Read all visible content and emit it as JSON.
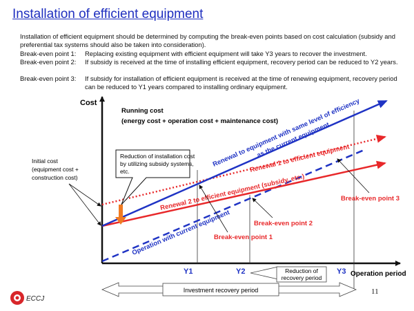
{
  "title": "Installation of efficient equipment",
  "intro": "Installation of efficient equipment should be determined by computing the break-even points based on cost calculation (subsidy and preferential tax systems should also be taken into consideration).",
  "breakeven_points": [
    {
      "label": "Break-even point 1:",
      "text": "Replacing existing equipment with efficient equipment will take Y3 years to recover the investment."
    },
    {
      "label": "Break-even point 2:",
      "text": "If subsidy is received at the time of installing efficient equipment, recovery period can be reduced to Y2 years."
    },
    {
      "label": "Break-even point 3:",
      "text": "If subsidy for installation of efficient equipment is received at the time of renewing equipment, recovery period can be reduced to Y1 years compared to installing ordinary equipment."
    }
  ],
  "diagram": {
    "cost_axis": "Cost",
    "operation_axis": "Operation period",
    "running_cost_title": "Running cost",
    "running_cost_detail": "(energy cost + operation cost + maintenance cost)",
    "initial_cost_lines": [
      "Initial cost",
      "(equipment cost +",
      "construction cost)"
    ],
    "callout_lines": [
      "Reduction of installation  cost",
      "by utilizing subsidy systems,",
      "etc."
    ],
    "line_renewal_same": [
      "Renewal to equipment with same level of efficiency",
      "as the current equipment"
    ],
    "line_renewal1": "Renewal 1 to efficient equipment",
    "line_renewal2": "Renewal 2 to efficient equipment (subsidy, etc.)",
    "line_current": "Operation with current equipment",
    "bp1": "Break-even point 1",
    "bp2": "Break-even point 2",
    "bp3": "Break-even point 3",
    "y1": "Y1",
    "y2": "Y2",
    "y3": "Y3",
    "reduction_period": [
      "Reduction of",
      "recovery period"
    ],
    "investment_period": "Investment recovery period"
  },
  "colors": {
    "title": "#1f2fbf",
    "blue": "#1f33c4",
    "red": "#e8282a",
    "orange": "#f07a22"
  },
  "footer": {
    "logo": "ECCJ",
    "page": "11"
  }
}
